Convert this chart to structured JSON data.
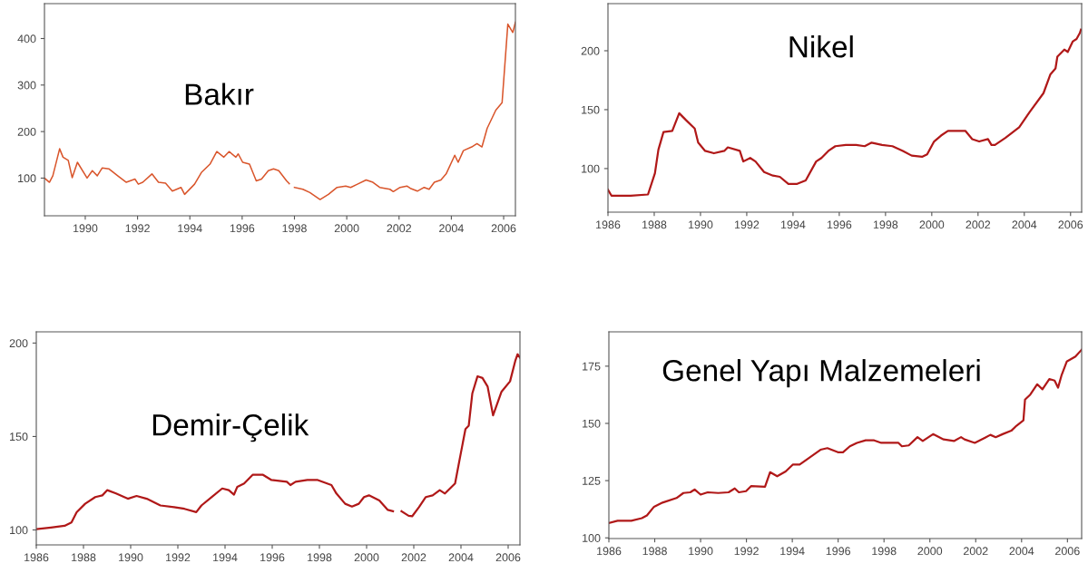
{
  "chart_data": [
    {
      "type": "line",
      "title": "Bakır",
      "xlim": [
        1988.44,
        2006.45
      ],
      "ylim": [
        19,
        475
      ],
      "xticks": [
        1990,
        1992,
        1994,
        1996,
        1998,
        2000,
        2002,
        2004,
        2006
      ],
      "yticks": [
        100,
        200,
        300,
        400
      ],
      "grid": false,
      "legend": false,
      "series": [
        {
          "color": "#d9552b",
          "x": [
            1988.44,
            1988.63,
            1988.76,
            1989.02,
            1989.15,
            1989.35,
            1989.5,
            1989.7,
            1990.07,
            1990.27,
            1990.46,
            1990.65,
            1990.9,
            1991.24,
            1991.57,
            1991.9,
            1992.03,
            1992.2,
            1992.55,
            1992.8,
            1993.07,
            1993.33,
            1993.66,
            1993.8,
            1994.18,
            1994.44,
            1994.77,
            1995.03,
            1995.3,
            1995.5,
            1995.76,
            1995.85,
            1996.02,
            1996.28,
            1996.54,
            1996.74,
            1997.0,
            1997.2,
            1997.4,
            1997.7,
            1997.8,
            1997.9,
            1998.0,
            1998.32,
            1998.59,
            1998.98,
            1999.3,
            1999.63,
            1999.96,
            2000.15,
            2000.41,
            2000.74,
            2001.0,
            2001.26,
            2001.65,
            2001.78,
            2002.04,
            2002.3,
            2002.43,
            2002.7,
            2002.96,
            2003.15,
            2003.35,
            2003.6,
            2003.8,
            2004.13,
            2004.26,
            2004.46,
            2004.78,
            2004.98,
            2005.17,
            2005.37,
            2005.7,
            2005.94,
            2006.16,
            2006.35,
            2006.45
          ],
          "values": [
            100,
            91,
            105,
            163,
            145,
            138,
            101,
            134,
            100,
            116,
            105,
            122,
            120,
            105,
            91,
            98,
            87,
            91,
            109,
            91,
            89,
            72,
            80,
            65,
            87,
            112,
            130,
            157,
            145,
            157,
            145,
            152,
            134,
            130,
            94,
            98,
            116,
            120,
            116,
            94,
            88,
            null,
            80,
            76,
            69,
            54,
            65,
            80,
            83,
            80,
            87,
            96,
            91,
            80,
            76,
            71,
            80,
            83,
            78,
            72,
            80,
            76,
            91,
            96,
            109,
            149,
            134,
            159,
            167,
            174,
            167,
            207,
            246,
            262,
            431,
            413,
            435
          ]
        }
      ]
    },
    {
      "type": "line",
      "title": "Nikel",
      "xlim": [
        1986,
        2006.48
      ],
      "ylim": [
        63,
        240
      ],
      "xticks": [
        1986,
        1988,
        1990,
        1992,
        1994,
        1996,
        1998,
        2000,
        2002,
        2004,
        2006
      ],
      "yticks": [
        100,
        150,
        200
      ],
      "grid": false,
      "legend": false,
      "series": [
        {
          "color": "#b01818",
          "x": [
            1986.0,
            1986.15,
            1986.98,
            1987.73,
            1988.03,
            1988.18,
            1988.4,
            1988.78,
            1989.08,
            1989.38,
            1989.75,
            1989.9,
            1990.2,
            1990.58,
            1991.03,
            1991.18,
            1991.7,
            1991.85,
            1992.15,
            1992.38,
            1992.75,
            1993.13,
            1993.43,
            1993.8,
            1994.18,
            1994.55,
            1995.0,
            1995.23,
            1995.53,
            1995.83,
            1996.28,
            1996.73,
            1997.1,
            1997.4,
            1997.85,
            1998.3,
            1998.75,
            1999.13,
            1999.58,
            1999.8,
            2000.1,
            2000.4,
            2000.7,
            2001.23,
            2001.45,
            2001.75,
            2002.05,
            2002.43,
            2002.58,
            2002.73,
            2003.18,
            2003.78,
            2004.23,
            2004.83,
            2005.13,
            2005.35,
            2005.43,
            2005.73,
            2005.88,
            2006.1,
            2006.26,
            2006.4,
            2006.45
          ],
          "values": [
            82,
            77,
            77,
            78,
            96,
            116,
            131,
            132,
            147,
            141,
            134,
            122,
            115,
            113,
            115,
            118,
            115,
            106,
            109,
            106,
            97,
            94,
            93,
            87,
            87,
            90,
            106,
            109,
            115,
            119,
            120,
            120,
            119,
            122,
            120,
            119,
            115,
            111,
            110,
            112,
            123,
            128,
            132,
            132,
            132,
            125,
            123,
            125,
            120,
            120,
            126,
            135,
            148,
            164,
            180,
            185,
            195,
            201,
            199,
            208,
            210,
            215,
            218
          ]
        }
      ]
    },
    {
      "type": "line",
      "title": "Demir-Çelik",
      "xlim": [
        1986,
        2006.5
      ],
      "ylim": [
        92,
        206
      ],
      "xticks": [
        1986,
        1988,
        1990,
        1992,
        1994,
        1996,
        1998,
        2000,
        2002,
        2004,
        2006
      ],
      "yticks": [
        100,
        150,
        200
      ],
      "grid": false,
      "legend": false,
      "series": [
        {
          "color": "#b01818",
          "x": [
            1986.0,
            1986.62,
            1987.2,
            1987.49,
            1987.71,
            1988.07,
            1988.5,
            1988.8,
            1989.01,
            1989.38,
            1989.88,
            1990.25,
            1990.68,
            1991.26,
            1991.84,
            1992.28,
            1992.78,
            1993.0,
            1993.44,
            1993.88,
            1994.16,
            1994.38,
            1994.52,
            1994.81,
            1995.17,
            1995.61,
            1995.97,
            1996.62,
            1996.77,
            1996.99,
            1997.49,
            1997.93,
            1998.51,
            1998.72,
            1999.09,
            1999.38,
            1999.67,
            1999.89,
            2000.1,
            2000.54,
            2000.9,
            2001.12,
            2001.3,
            2001.48,
            2001.78,
            2001.93,
            2002.22,
            2002.51,
            2002.8,
            2003.1,
            2003.32,
            2003.75,
            2003.97,
            2004.19,
            2004.33,
            2004.48,
            2004.7,
            2004.91,
            2005.13,
            2005.36,
            2005.72,
            2006.08,
            2006.3,
            2006.4,
            2006.5
          ],
          "values": [
            100.4,
            101.3,
            102.2,
            104,
            109.5,
            114,
            117.6,
            118.5,
            121.3,
            119.5,
            116.7,
            118.2,
            116.7,
            113.1,
            112.2,
            111.3,
            109.5,
            113.1,
            117.6,
            122.2,
            121.3,
            118.9,
            123.1,
            124.9,
            129.5,
            129.5,
            126.7,
            125.8,
            124,
            125.8,
            126.7,
            126.7,
            124,
            119.5,
            114,
            112.5,
            114,
            117.6,
            118.5,
            115.8,
            110.7,
            110,
            null,
            110,
            107.6,
            107.3,
            112.2,
            117.6,
            118.5,
            121.3,
            119.5,
            124.9,
            139.5,
            154,
            155.8,
            173,
            182.2,
            181.3,
            176.7,
            161.3,
            174,
            179.5,
            190.4,
            194,
            192.2
          ]
        }
      ]
    },
    {
      "type": "line",
      "title": "Genel Yapı Malzemeleri",
      "xlim": [
        1986,
        2006.62
      ],
      "ylim": [
        99.7,
        190
      ],
      "xticks": [
        1986,
        1988,
        1990,
        1992,
        1994,
        1996,
        1998,
        2000,
        2002,
        2004,
        2006
      ],
      "yticks": [
        100,
        125,
        150,
        175
      ],
      "grid": false,
      "legend": false,
      "series": [
        {
          "color": "#b01818",
          "x": [
            1986.0,
            1986.38,
            1986.98,
            1987.44,
            1987.66,
            1987.97,
            1988.34,
            1988.95,
            1989.25,
            1989.55,
            1989.74,
            1990.0,
            1990.31,
            1990.77,
            1991.22,
            1991.49,
            1991.67,
            1991.98,
            1992.2,
            1992.81,
            1993.03,
            1993.34,
            1993.71,
            1994.02,
            1994.32,
            1994.7,
            1995.23,
            1995.53,
            1995.99,
            1996.21,
            1996.51,
            1996.82,
            1997.2,
            1997.57,
            1997.88,
            1998.63,
            1998.78,
            1999.08,
            1999.46,
            1999.69,
            2000.14,
            2000.6,
            2001.05,
            2001.36,
            2001.51,
            2001.96,
            2002.41,
            2002.64,
            2002.87,
            2003.17,
            2003.55,
            2003.78,
            2004.08,
            2004.15,
            2004.38,
            2004.68,
            2004.91,
            2005.21,
            2005.44,
            2005.59,
            2005.74,
            2005.97,
            2006.35,
            2006.62
          ],
          "values": [
            106.5,
            107.5,
            107.5,
            108.6,
            109.8,
            113.6,
            115.4,
            117.4,
            119.6,
            119.9,
            121.1,
            118.9,
            119.9,
            119.6,
            119.9,
            121.6,
            119.9,
            120.4,
            122.6,
            122.3,
            128.7,
            126.9,
            129,
            132,
            132,
            134.7,
            138.5,
            139.2,
            137.4,
            137.4,
            140,
            141.5,
            142.6,
            142.6,
            141.5,
            141.5,
            140,
            140.4,
            144,
            142.3,
            145.3,
            143,
            142.3,
            144,
            143,
            141.5,
            143.8,
            145,
            144,
            145.3,
            146.8,
            149,
            151.3,
            160.4,
            162.6,
            167.1,
            164.9,
            169.4,
            168.7,
            165.6,
            170.9,
            177,
            179.2,
            182.2
          ]
        }
      ]
    }
  ]
}
